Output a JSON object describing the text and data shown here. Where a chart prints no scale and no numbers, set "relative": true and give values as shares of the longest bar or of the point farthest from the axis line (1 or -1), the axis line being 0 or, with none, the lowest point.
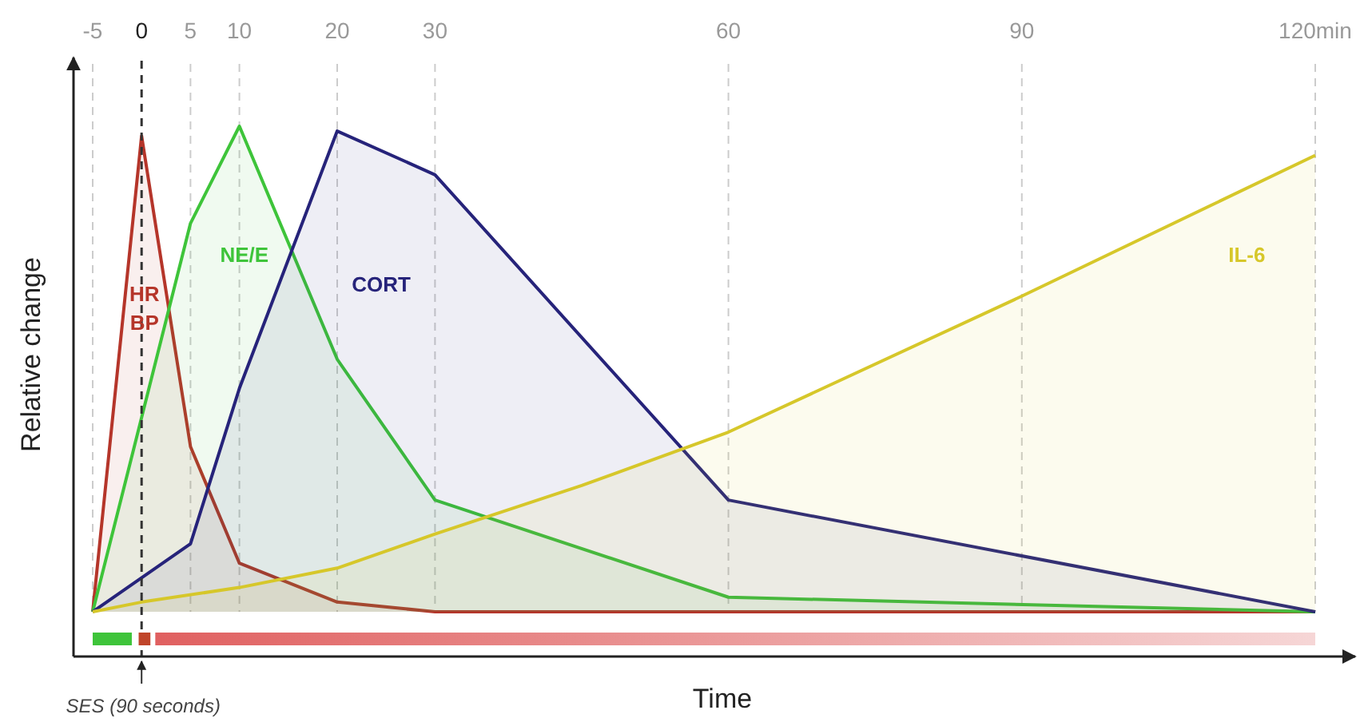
{
  "chart_data": {
    "type": "area",
    "relative": true,
    "xlabel": "Time",
    "ylabel": "Relative change",
    "xlim": [
      -5,
      120
    ],
    "xticks": [
      -5,
      0,
      5,
      10,
      20,
      30,
      60,
      90,
      {
        "value": 120,
        "label": "120min"
      }
    ],
    "grid": "x",
    "line_style": "solid",
    "marker": "none",
    "ref_lines": [
      {
        "axis": "x",
        "value": 0,
        "color": "#333333",
        "line_style": "dashed"
      }
    ],
    "annotations": [
      {
        "text": "SES (90 seconds)",
        "x": 0
      }
    ],
    "series": [
      {
        "name": "HR BP",
        "color": "#b5352a",
        "x": [
          -5,
          0,
          5,
          10,
          20,
          30,
          60,
          90,
          120
        ],
        "values": [
          0,
          0.98,
          0.34,
          0.1,
          0.02,
          0,
          0,
          0,
          0
        ]
      },
      {
        "name": "NE/E",
        "color": "#3ec43a",
        "x": [
          -5,
          5,
          10,
          20,
          30,
          60,
          120
        ],
        "values": [
          0,
          0.8,
          1,
          0.52,
          0.23,
          0.03,
          0
        ]
      },
      {
        "name": "CORT",
        "color": "#26237a",
        "x": [
          -5,
          5,
          10,
          20,
          30,
          60,
          120
        ],
        "values": [
          0,
          0.14,
          0.46,
          0.99,
          0.9,
          0.23,
          0
        ]
      },
      {
        "name": "IL-6",
        "color": "#d6c72a",
        "x": [
          -5,
          0,
          10,
          20,
          30,
          45,
          60,
          90,
          120
        ],
        "values": [
          0,
          0.02,
          0.05,
          0.09,
          0.16,
          0.26,
          0.37,
          0.65,
          0.94
        ]
      }
    ]
  }
}
